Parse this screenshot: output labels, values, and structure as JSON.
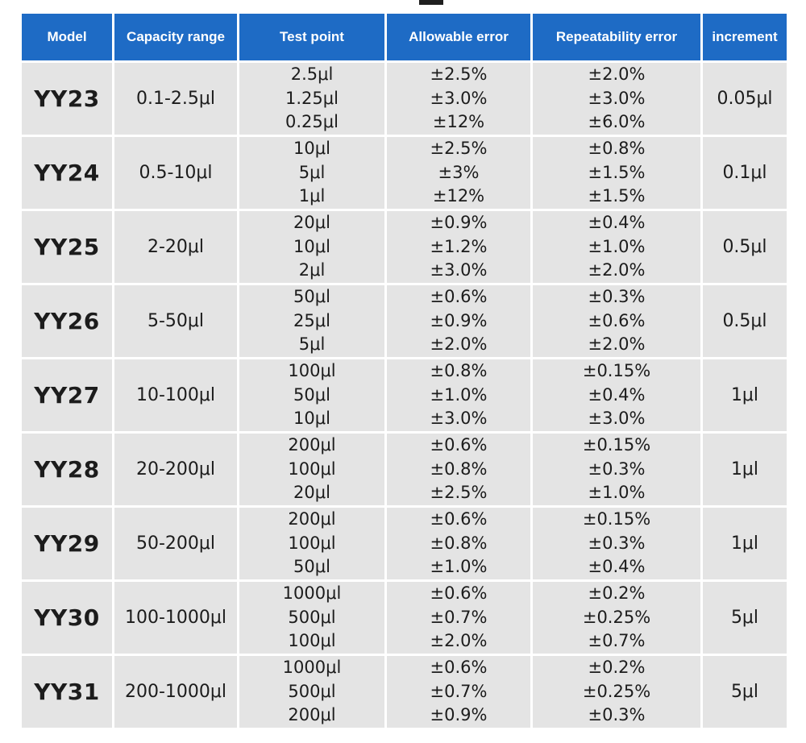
{
  "headers": {
    "model": "Model",
    "capacity": "Capacity range",
    "test_point": "Test point",
    "allowable": "Allowable error",
    "repeatability": "Repeatability error",
    "increment": "increment"
  },
  "rows": [
    {
      "model": "YY23",
      "capacity": "0.1-2.5μl",
      "test_points": [
        "2.5μl",
        "1.25μl",
        "0.25μl"
      ],
      "allowable": [
        "±2.5%",
        "±3.0%",
        "±12%"
      ],
      "repeatability": [
        "±2.0%",
        "±3.0%",
        "±6.0%"
      ],
      "increment": "0.05μl"
    },
    {
      "model": "YY24",
      "capacity": "0.5-10μl",
      "test_points": [
        "10μl",
        "5μl",
        "1μl"
      ],
      "allowable": [
        "±2.5%",
        "±3%",
        "±12%"
      ],
      "repeatability": [
        "±0.8%",
        "±1.5%",
        "±1.5%"
      ],
      "increment": "0.1μl"
    },
    {
      "model": "YY25",
      "capacity": "2-20μl",
      "test_points": [
        "20μl",
        "10μl",
        "2μl"
      ],
      "allowable": [
        "±0.9%",
        "±1.2%",
        "±3.0%"
      ],
      "repeatability": [
        "±0.4%",
        "±1.0%",
        "±2.0%"
      ],
      "increment": "0.5μl"
    },
    {
      "model": "YY26",
      "capacity": "5-50μl",
      "test_points": [
        "50μl",
        "25μl",
        "5μl"
      ],
      "allowable": [
        "±0.6%",
        "±0.9%",
        "±2.0%"
      ],
      "repeatability": [
        "±0.3%",
        "±0.6%",
        "±2.0%"
      ],
      "increment": "0.5μl"
    },
    {
      "model": "YY27",
      "capacity": "10-100μl",
      "test_points": [
        "100μl",
        "50μl",
        "10μl"
      ],
      "allowable": [
        "±0.8%",
        "±1.0%",
        "±3.0%"
      ],
      "repeatability": [
        "±0.15%",
        "±0.4%",
        "±3.0%"
      ],
      "increment": "1μl"
    },
    {
      "model": "YY28",
      "capacity": "20-200μl",
      "test_points": [
        "200μl",
        "100μl",
        "20μl"
      ],
      "allowable": [
        "±0.6%",
        "±0.8%",
        "±2.5%"
      ],
      "repeatability": [
        "±0.15%",
        "±0.3%",
        "±1.0%"
      ],
      "increment": "1μl"
    },
    {
      "model": "YY29",
      "capacity": "50-200μl",
      "test_points": [
        "200μl",
        "100μl",
        "50μl"
      ],
      "allowable": [
        "±0.6%",
        "±0.8%",
        "±1.0%"
      ],
      "repeatability": [
        "±0.15%",
        "±0.3%",
        "±0.4%"
      ],
      "increment": "1μl"
    },
    {
      "model": "YY30",
      "capacity": "100-1000μl",
      "test_points": [
        "1000μl",
        "500μl",
        "100μl"
      ],
      "allowable": [
        "±0.6%",
        "±0.7%",
        "±2.0%"
      ],
      "repeatability": [
        "±0.2%",
        "±0.25%",
        "±0.7%"
      ],
      "increment": "5μl"
    },
    {
      "model": "YY31",
      "capacity": "200-1000μl",
      "test_points": [
        "1000μl",
        "500μl",
        "200μl"
      ],
      "allowable": [
        "±0.6%",
        "±0.7%",
        "±0.9%"
      ],
      "repeatability": [
        "±0.2%",
        "±0.25%",
        "±0.3%"
      ],
      "increment": "5μl"
    }
  ],
  "colors": {
    "header_bg": "#1e6bc5",
    "header_text": "#ffffff",
    "cell_bg": "#e4e4e4",
    "cell_text": "#1c1c1c"
  }
}
